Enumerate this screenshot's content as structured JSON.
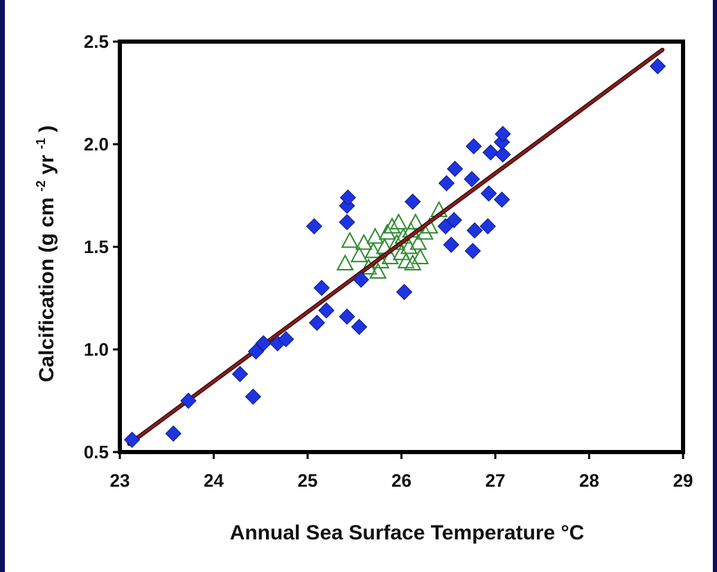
{
  "chart_data": {
    "type": "scatter",
    "xlabel": "Annual Sea Surface Temperature °C",
    "ylabel": {
      "prefix": "Calcification (g cm",
      "exp1": "-2",
      "mid": "yr",
      "exp2": "-1",
      "suffix": ")"
    },
    "xlim": [
      23,
      29
    ],
    "ylim": [
      0.5,
      2.5
    ],
    "xticks": [
      "23",
      "24",
      "25",
      "26",
      "27",
      "28",
      "29"
    ],
    "yticks": [
      "0.5",
      "1.0",
      "1.5",
      "2.0",
      "2.5"
    ],
    "grid": false,
    "colors": {
      "diamond": "#1e34e0",
      "triangle": "#2e8a2e",
      "fit_line": "#8b1a1a",
      "border": "#0d0f5e"
    },
    "series": [
      {
        "marker": "diamond",
        "points": [
          [
            23.13,
            0.56
          ],
          [
            23.57,
            0.59
          ],
          [
            23.73,
            0.75
          ],
          [
            24.28,
            0.88
          ],
          [
            24.42,
            0.77
          ],
          [
            24.45,
            0.99
          ],
          [
            24.53,
            1.03
          ],
          [
            24.68,
            1.03
          ],
          [
            24.77,
            1.05
          ],
          [
            25.07,
            1.6
          ],
          [
            25.1,
            1.13
          ],
          [
            25.15,
            1.3
          ],
          [
            25.2,
            1.19
          ],
          [
            25.42,
            1.16
          ],
          [
            25.42,
            1.62
          ],
          [
            25.42,
            1.7
          ],
          [
            25.43,
            1.74
          ],
          [
            25.55,
            1.11
          ],
          [
            25.57,
            1.34
          ],
          [
            26.03,
            1.28
          ],
          [
            26.12,
            1.72
          ],
          [
            26.47,
            1.6
          ],
          [
            26.48,
            1.81
          ],
          [
            26.53,
            1.51
          ],
          [
            26.56,
            1.63
          ],
          [
            26.57,
            1.88
          ],
          [
            26.75,
            1.83
          ],
          [
            26.76,
            1.48
          ],
          [
            26.77,
            1.99
          ],
          [
            26.78,
            1.58
          ],
          [
            26.92,
            1.6
          ],
          [
            26.93,
            1.76
          ],
          [
            26.95,
            1.96
          ],
          [
            27.07,
            1.73
          ],
          [
            27.08,
            1.95
          ],
          [
            27.07,
            2.01
          ],
          [
            27.08,
            2.05
          ],
          [
            28.73,
            2.38
          ]
        ]
      },
      {
        "marker": "triangle",
        "points": [
          [
            25.4,
            1.42
          ],
          [
            25.45,
            1.53
          ],
          [
            25.55,
            1.46
          ],
          [
            25.6,
            1.52
          ],
          [
            25.65,
            1.4
          ],
          [
            25.7,
            1.48
          ],
          [
            25.72,
            1.55
          ],
          [
            25.78,
            1.43
          ],
          [
            25.82,
            1.5
          ],
          [
            25.85,
            1.57
          ],
          [
            25.88,
            1.45
          ],
          [
            25.9,
            1.6
          ],
          [
            25.95,
            1.52
          ],
          [
            26.0,
            1.47
          ],
          [
            26.02,
            1.55
          ],
          [
            26.05,
            1.43
          ],
          [
            26.08,
            1.5
          ],
          [
            26.1,
            1.58
          ],
          [
            26.15,
            1.62
          ],
          [
            26.18,
            1.52
          ],
          [
            26.2,
            1.45
          ],
          [
            26.25,
            1.57
          ],
          [
            26.3,
            1.6
          ],
          [
            26.4,
            1.68
          ],
          [
            25.97,
            1.62
          ],
          [
            25.75,
            1.38
          ],
          [
            26.12,
            1.42
          ]
        ]
      }
    ],
    "fit_line": {
      "x": [
        23.1,
        28.78
      ],
      "y": [
        0.54,
        2.46
      ]
    }
  }
}
